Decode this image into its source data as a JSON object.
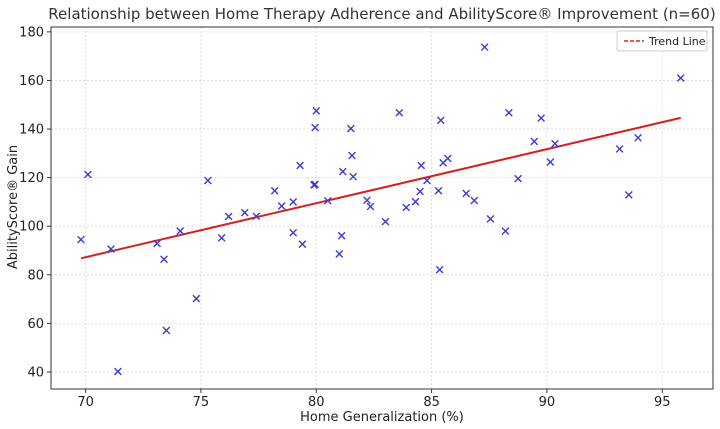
{
  "chart_data": {
    "type": "scatter",
    "title": "Relationship between Home Therapy Adherence and AbilityScore® Improvement (n=60)",
    "xlabel": "Home Generalization (%)",
    "ylabel": "AbilityScore® Gain",
    "xlim": [
      68.5,
      97.2
    ],
    "ylim": [
      33,
      182
    ],
    "xticks": [
      70,
      75,
      80,
      85,
      90,
      95
    ],
    "yticks": [
      40,
      60,
      80,
      100,
      120,
      140,
      160,
      180
    ],
    "grid": true,
    "legend_position": "top-right",
    "series": [
      {
        "marker": "x",
        "color": "#3b3bd6",
        "points": [
          [
            69.8,
            94.5
          ],
          [
            70.1,
            121.3
          ],
          [
            71.1,
            90.6
          ],
          [
            71.4,
            40.2
          ],
          [
            73.1,
            92.9
          ],
          [
            73.4,
            86.4
          ],
          [
            73.5,
            57.1
          ],
          [
            74.1,
            98.0
          ],
          [
            74.8,
            70.2
          ],
          [
            75.3,
            118.8
          ],
          [
            75.9,
            95.2
          ],
          [
            76.2,
            104.0
          ],
          [
            76.9,
            105.6
          ],
          [
            77.4,
            104.1
          ],
          [
            78.2,
            114.6
          ],
          [
            78.5,
            108.3
          ],
          [
            79.0,
            110.0
          ],
          [
            79.0,
            97.3
          ],
          [
            79.3,
            125.0
          ],
          [
            79.4,
            92.6
          ],
          [
            79.9,
            117.0
          ],
          [
            79.95,
            117.2
          ],
          [
            79.95,
            140.6
          ],
          [
            80.0,
            147.5
          ],
          [
            80.5,
            110.5
          ],
          [
            81.0,
            88.6
          ],
          [
            81.1,
            96.1
          ],
          [
            81.15,
            122.5
          ],
          [
            81.5,
            140.2
          ],
          [
            81.55,
            129.1
          ],
          [
            81.6,
            120.4
          ],
          [
            82.2,
            110.7
          ],
          [
            82.35,
            108.1
          ],
          [
            83.0,
            101.9
          ],
          [
            83.6,
            146.7
          ],
          [
            83.9,
            107.7
          ],
          [
            84.3,
            110.1
          ],
          [
            84.5,
            114.3
          ],
          [
            84.55,
            125.0
          ],
          [
            84.8,
            118.8
          ],
          [
            85.3,
            114.6
          ],
          [
            85.35,
            82.1
          ],
          [
            85.4,
            143.6
          ],
          [
            85.5,
            126.1
          ],
          [
            85.7,
            127.9
          ],
          [
            86.5,
            113.5
          ],
          [
            86.85,
            110.6
          ],
          [
            87.3,
            173.7
          ],
          [
            87.55,
            103.0
          ],
          [
            88.2,
            98.0
          ],
          [
            88.35,
            146.7
          ],
          [
            88.75,
            119.6
          ],
          [
            89.45,
            134.9
          ],
          [
            89.75,
            144.5
          ],
          [
            90.15,
            126.4
          ],
          [
            90.35,
            134.0
          ],
          [
            93.15,
            131.8
          ],
          [
            93.55,
            112.9
          ],
          [
            93.95,
            136.4
          ],
          [
            95.8,
            161.0
          ]
        ]
      }
    ],
    "trend_line": {
      "name": "Trend Line",
      "color": "#d62020",
      "x": [
        69.8,
        95.8
      ],
      "y": [
        86.8,
        144.6
      ]
    }
  }
}
